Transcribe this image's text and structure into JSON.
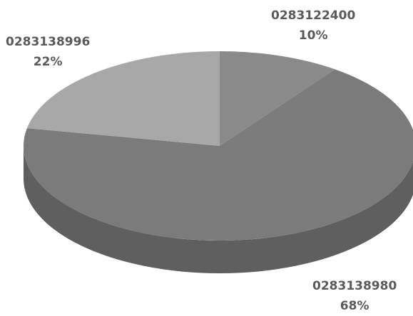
{
  "chart_data": {
    "type": "pie",
    "style": "3d",
    "title": "",
    "slices": [
      {
        "label": "0283122400",
        "pct_label": "10%",
        "value": 10,
        "color": "#8a8a8a"
      },
      {
        "label": "0283138980",
        "pct_label": "68%",
        "value": 68,
        "color": "#7b7b7b"
      },
      {
        "label": "0283138996",
        "pct_label": "22%",
        "value": 22,
        "color": "#a8a8a8"
      }
    ],
    "legend": "none"
  }
}
